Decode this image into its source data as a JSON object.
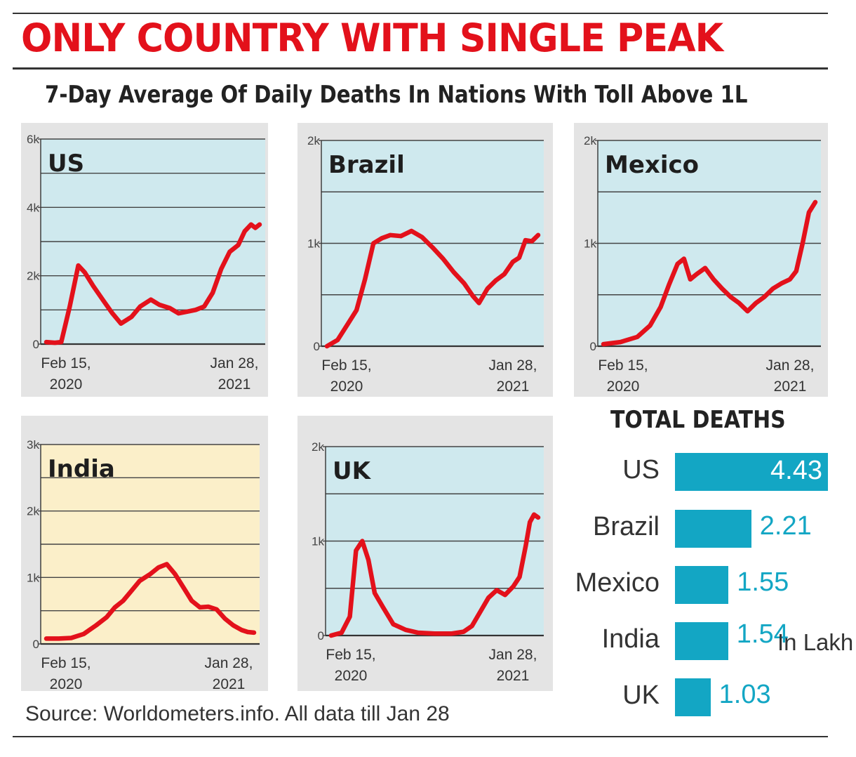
{
  "headline": "ONLY COUNTRY WITH SINGLE PEAK",
  "subtitle": "7-Day Average Of Daily Deaths In Nations With Toll Above 1L",
  "source": "Source: Worldometers.info. All data till Jan 28",
  "colors": {
    "headline": "#e3111b",
    "line": "#e3111b",
    "panel_blue": "#cfe9ee",
    "panel_india": "#fbefc9",
    "bar": "#13a6c4"
  },
  "date_labels": {
    "start": [
      "Feb 15,",
      "2020"
    ],
    "end": [
      "Jan 28,",
      "2021"
    ]
  },
  "chart_data": [
    {
      "type": "line",
      "title": "US",
      "x_range": [
        "Feb 15, 2020",
        "Jan 28, 2021"
      ],
      "ylim": [
        0,
        6000
      ],
      "y_ticks": [
        0,
        2000,
        4000,
        6000
      ],
      "y_tick_labels": [
        "0",
        "2k",
        "4k",
        "6k"
      ],
      "series": [
        {
          "x": [
            0,
            0.04,
            0.07,
            0.11,
            0.15,
            0.18,
            0.22,
            0.27,
            0.31,
            0.35,
            0.4,
            0.44,
            0.49,
            0.53,
            0.58,
            0.62,
            0.66,
            0.7,
            0.74,
            0.78,
            0.82,
            0.86,
            0.9,
            0.93,
            0.96,
            0.98,
            1.0
          ],
          "y": [
            60,
            40,
            60,
            1100,
            2300,
            2100,
            1700,
            1250,
            900,
            600,
            800,
            1100,
            1300,
            1150,
            1050,
            900,
            950,
            1000,
            1100,
            1500,
            2200,
            2700,
            2900,
            3300,
            3500,
            3400,
            3500
          ]
        }
      ]
    },
    {
      "type": "line",
      "title": "Brazil",
      "x_range": [
        "Feb 15, 2020",
        "Jan 28, 2021"
      ],
      "ylim": [
        0,
        2000
      ],
      "y_ticks": [
        0,
        1000,
        2000
      ],
      "y_tick_labels": [
        "0",
        "1k",
        "2k"
      ],
      "series": [
        {
          "x": [
            0,
            0.05,
            0.1,
            0.14,
            0.18,
            0.22,
            0.26,
            0.3,
            0.35,
            0.4,
            0.45,
            0.5,
            0.55,
            0.6,
            0.65,
            0.69,
            0.72,
            0.76,
            0.8,
            0.84,
            0.88,
            0.91,
            0.94,
            0.97,
            1.0
          ],
          "y": [
            0,
            60,
            220,
            350,
            650,
            1000,
            1050,
            1080,
            1070,
            1120,
            1060,
            960,
            850,
            720,
            610,
            490,
            420,
            560,
            640,
            700,
            820,
            860,
            1030,
            1020,
            1080
          ]
        }
      ]
    },
    {
      "type": "line",
      "title": "Mexico",
      "x_range": [
        "Feb 15, 2020",
        "Jan 28, 2021"
      ],
      "ylim": [
        0,
        2000
      ],
      "y_ticks": [
        0,
        1000,
        2000
      ],
      "y_tick_labels": [
        "0",
        "1k",
        "2k"
      ],
      "series": [
        {
          "x": [
            0,
            0.08,
            0.16,
            0.22,
            0.27,
            0.31,
            0.35,
            0.38,
            0.41,
            0.44,
            0.48,
            0.52,
            0.56,
            0.6,
            0.64,
            0.68,
            0.72,
            0.76,
            0.8,
            0.84,
            0.88,
            0.91,
            0.94,
            0.97,
            1.0
          ],
          "y": [
            20,
            40,
            90,
            200,
            380,
            600,
            800,
            850,
            650,
            700,
            760,
            650,
            560,
            480,
            420,
            340,
            420,
            480,
            560,
            610,
            650,
            730,
            1000,
            1300,
            1400
          ]
        }
      ]
    },
    {
      "type": "line",
      "title": "India",
      "x_range": [
        "Feb 15, 2020",
        "Jan 28, 2021"
      ],
      "ylim": [
        0,
        3000
      ],
      "y_ticks": [
        0,
        1000,
        2000,
        3000
      ],
      "y_tick_labels": [
        "0",
        "1k",
        "2k",
        "3k"
      ],
      "series": [
        {
          "x": [
            0,
            0.06,
            0.12,
            0.18,
            0.24,
            0.29,
            0.33,
            0.37,
            0.41,
            0.45,
            0.5,
            0.54,
            0.58,
            0.62,
            0.66,
            0.7,
            0.74,
            0.78,
            0.82,
            0.86,
            0.9,
            0.94,
            0.97,
            1.0
          ],
          "y": [
            80,
            80,
            90,
            150,
            280,
            400,
            550,
            650,
            800,
            950,
            1050,
            1150,
            1200,
            1050,
            850,
            650,
            550,
            560,
            520,
            380,
            280,
            210,
            180,
            170
          ]
        }
      ]
    },
    {
      "type": "line",
      "title": "UK",
      "x_range": [
        "Feb 15, 2020",
        "Jan 28, 2021"
      ],
      "ylim": [
        0,
        2000
      ],
      "y_ticks": [
        0,
        1000,
        2000
      ],
      "y_tick_labels": [
        "0",
        "1k",
        "2k"
      ],
      "series": [
        {
          "x": [
            0,
            0.05,
            0.09,
            0.12,
            0.15,
            0.18,
            0.21,
            0.25,
            0.3,
            0.36,
            0.42,
            0.5,
            0.58,
            0.64,
            0.68,
            0.72,
            0.76,
            0.8,
            0.84,
            0.88,
            0.91,
            0.94,
            0.96,
            0.98,
            1.0
          ],
          "y": [
            0,
            30,
            200,
            900,
            1000,
            800,
            450,
            300,
            120,
            60,
            30,
            20,
            20,
            40,
            100,
            250,
            400,
            480,
            430,
            520,
            620,
            950,
            1200,
            1280,
            1250
          ]
        }
      ]
    },
    {
      "type": "bar",
      "title": "TOTAL DEATHS",
      "orientation": "horizontal",
      "categories": [
        "US",
        "Brazil",
        "Mexico",
        "India",
        "UK"
      ],
      "values": [
        4.43,
        2.21,
        1.55,
        1.54,
        1.03
      ],
      "value_labels": [
        "4.43",
        "2.21",
        "1.55",
        "1.54",
        "1.03"
      ],
      "unit": "In Lakh",
      "xlim": [
        0,
        4.43
      ]
    }
  ]
}
